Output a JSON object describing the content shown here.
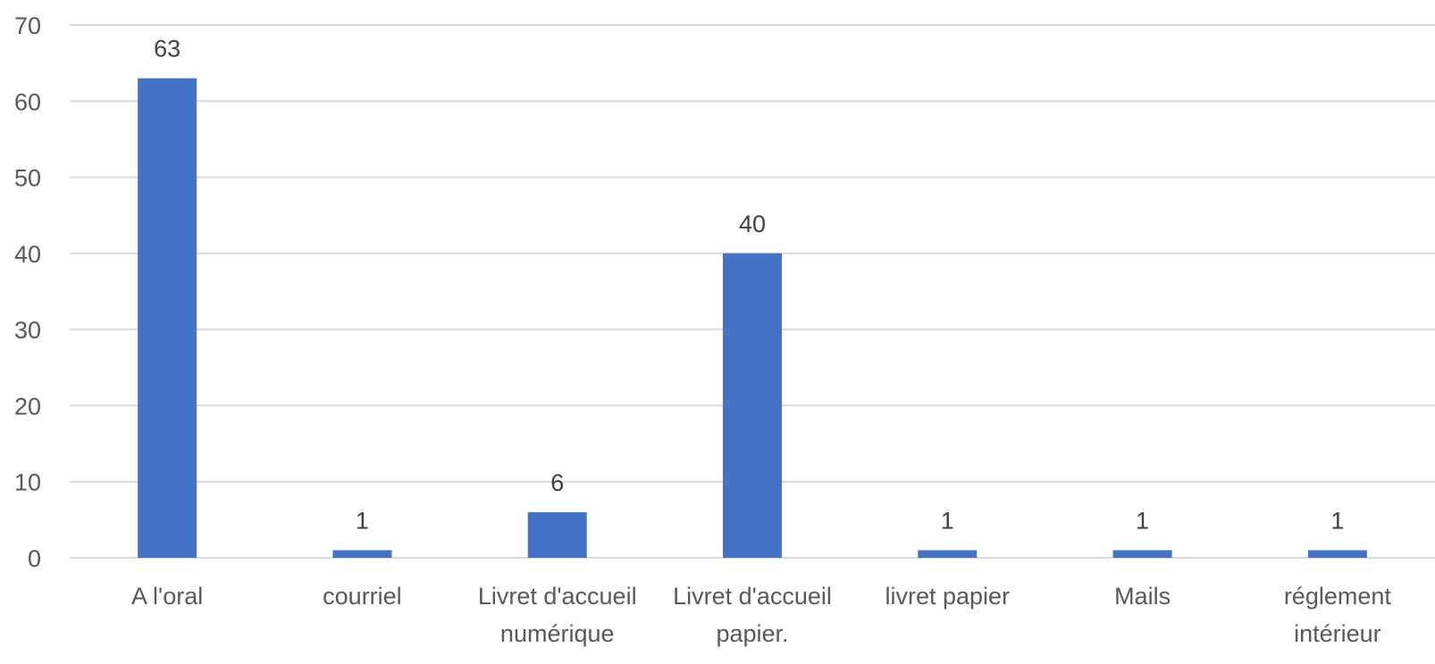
{
  "chart_data": {
    "type": "bar",
    "categories": [
      [
        "A l'oral"
      ],
      [
        "courriel"
      ],
      [
        "Livret d'accueil",
        "numérique"
      ],
      [
        "Livret d'accueil",
        "papier."
      ],
      [
        "livret papier"
      ],
      [
        "Mails"
      ],
      [
        "réglement",
        "intérieur"
      ]
    ],
    "values": [
      63,
      1,
      6,
      40,
      1,
      1,
      1
    ],
    "ylim": [
      0,
      70
    ],
    "yticks": [
      0,
      10,
      20,
      30,
      40,
      50,
      60,
      70
    ],
    "grid": true,
    "data_labels": true,
    "bar_color": "#4472c4",
    "title": "",
    "xlabel": "",
    "ylabel": ""
  }
}
